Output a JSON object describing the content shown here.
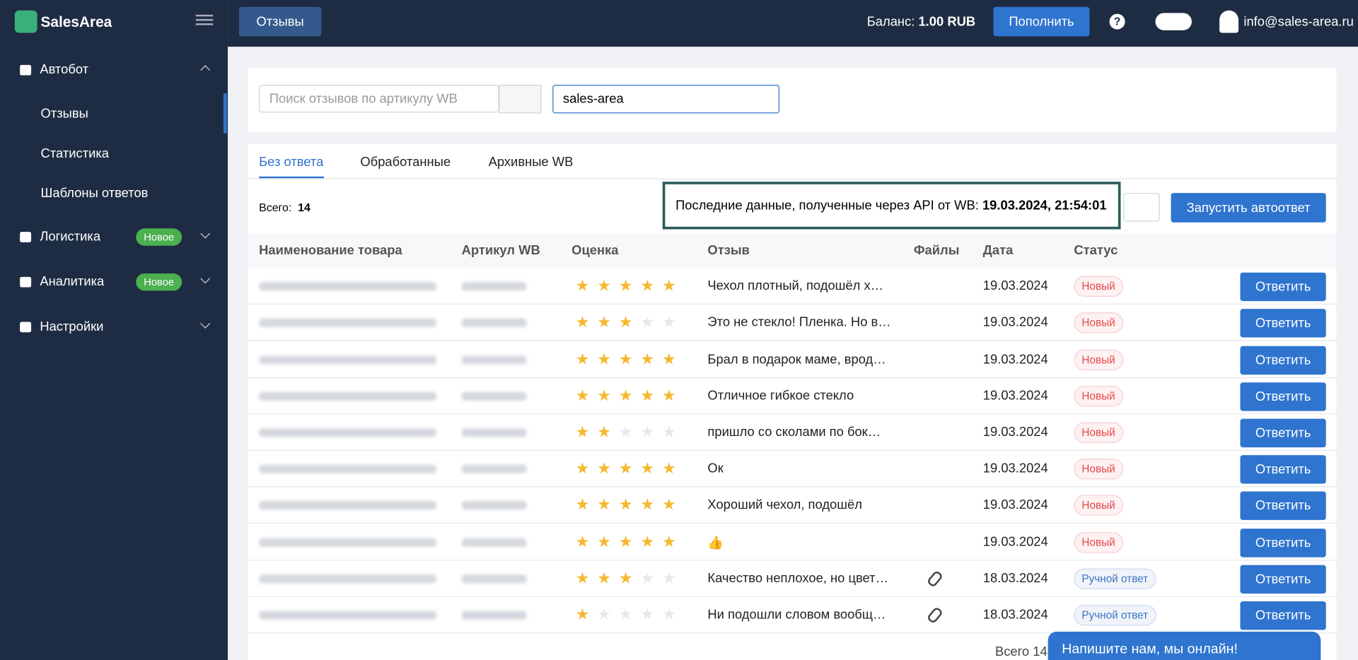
{
  "sidebar": {
    "logo": "SalesArea",
    "items": [
      {
        "label": "Автобот",
        "children": [
          "Отзывы",
          "Статистика",
          "Шаблоны ответов"
        ]
      },
      {
        "label": "Логистика",
        "badge": "Новое"
      },
      {
        "label": "Аналитика",
        "badge": "Новое"
      },
      {
        "label": "Настройки"
      }
    ]
  },
  "topbar": {
    "page": "Отзывы",
    "balance_label": "Баланс:",
    "balance": "1.00 RUB",
    "topup": "Пополнить",
    "email": "info@sales-area.ru"
  },
  "filters": {
    "search_placeholder": "Поиск отзывов по артикулу WB",
    "shop": "sales-area"
  },
  "tabs": [
    "Без ответа",
    "Обработанные",
    "Архивные WB"
  ],
  "toolbar": {
    "total_label": "Всего:",
    "total": 14,
    "api_label": "Последние данные, полученные через API от WB:",
    "api_time": "19.03.2024, 21:54:01",
    "autoreply": "Запустить автоответ"
  },
  "table": {
    "columns": [
      "Наименование товара",
      "Артикул WB",
      "Оценка",
      "Отзыв",
      "Файлы",
      "Дата",
      "Статус"
    ],
    "reply": "Ответить",
    "rows": [
      {
        "rating": 5,
        "review": "Чехол плотный, подошёл х…",
        "files": false,
        "date": "19.03.2024",
        "status": "Новый",
        "status_color": "#e5484d"
      },
      {
        "rating": 3,
        "review": "Это не стекло! Пленка. Но в…",
        "files": false,
        "date": "19.03.2024",
        "status": "Новый",
        "status_color": "#e5484d"
      },
      {
        "rating": 5,
        "review": "Брал в подарок маме, врод…",
        "files": false,
        "date": "19.03.2024",
        "status": "Новый",
        "status_color": "#e5484d"
      },
      {
        "rating": 5,
        "review": "Отличное гибкое стекло",
        "files": false,
        "date": "19.03.2024",
        "status": "Новый",
        "status_color": "#e5484d"
      },
      {
        "rating": 2,
        "review": "пришло со сколами по бок…",
        "files": false,
        "date": "19.03.2024",
        "status": "Новый",
        "status_color": "#e5484d"
      },
      {
        "rating": 5,
        "review": "Ок",
        "files": false,
        "date": "19.03.2024",
        "status": "Новый",
        "status_color": "#e5484d"
      },
      {
        "rating": 5,
        "review": "Хороший чехол, подошёл",
        "files": false,
        "date": "19.03.2024",
        "status": "Новый",
        "status_color": "#e5484d"
      },
      {
        "rating": 5,
        "review": "👍",
        "files": false,
        "date": "19.03.2024",
        "status": "Новый",
        "status_color": "#e5484d"
      },
      {
        "rating": 3,
        "review": "Качество неплохое, но цвет…",
        "files": true,
        "date": "18.03.2024",
        "status": "Ручной ответ",
        "status_color": "#3b74c4"
      },
      {
        "rating": 1,
        "review": "Ни подошли словом вообщ…",
        "files": true,
        "date": "18.03.2024",
        "status": "Ручной ответ",
        "status_color": "#3b74c4"
      }
    ]
  },
  "footer": {
    "total_label": "Всего"
  },
  "chat": {
    "text": "Напишите нам, мы онлайн!"
  }
}
